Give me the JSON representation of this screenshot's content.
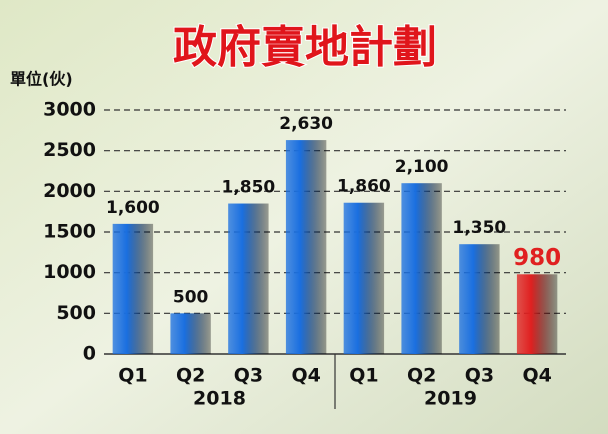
{
  "chart_data": {
    "type": "bar",
    "title": "政府賣地計劃",
    "y_label": "單位(伙)",
    "categories": [
      "Q1",
      "Q2",
      "Q3",
      "Q4",
      "Q1",
      "Q2",
      "Q3",
      "Q4"
    ],
    "group_labels": [
      "2018",
      "2019"
    ],
    "values": [
      1600,
      500,
      1850,
      2630,
      1860,
      2100,
      1350,
      980
    ],
    "value_labels": [
      "1,600",
      "500",
      "1,850",
      "2,630",
      "1,860",
      "2,100",
      "1,350",
      "980"
    ],
    "colors": [
      "#1a6fe0",
      "#1a6fe0",
      "#1a6fe0",
      "#1a6fe0",
      "#1a6fe0",
      "#1a6fe0",
      "#1a6fe0",
      "#e02020"
    ],
    "label_colors": [
      "#111111",
      "#111111",
      "#111111",
      "#111111",
      "#111111",
      "#111111",
      "#111111",
      "#e02020"
    ],
    "ylim": [
      0,
      3000
    ],
    "yticks": [
      0,
      500,
      1000,
      1500,
      2000,
      2500,
      3000
    ],
    "grid": true
  }
}
